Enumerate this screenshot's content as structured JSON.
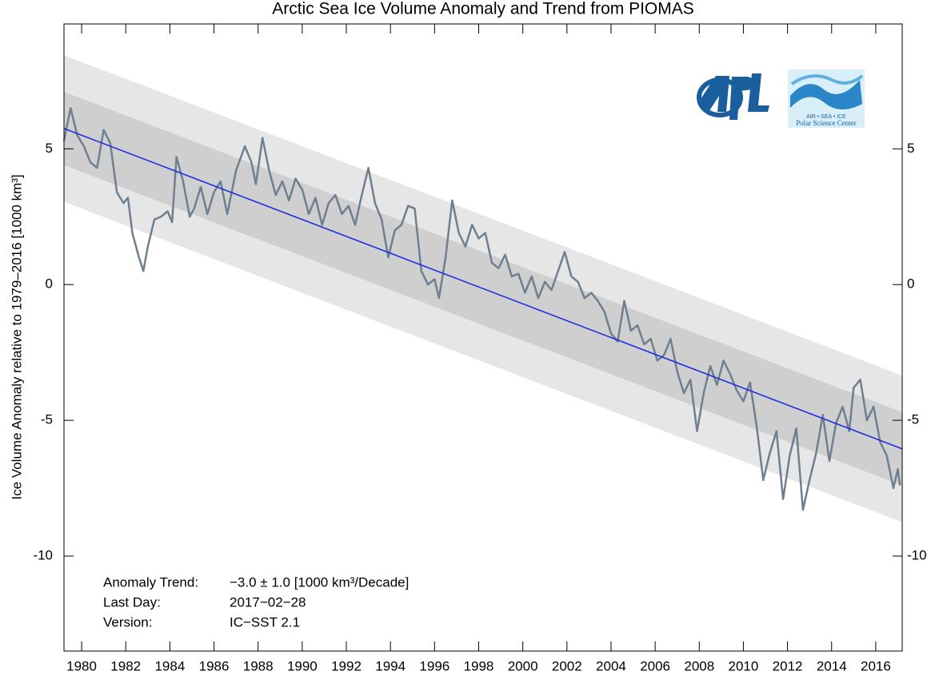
{
  "chart_data": {
    "type": "line",
    "title": "Arctic Sea Ice Volume Anomaly and Trend from PIOMAS",
    "y_label": "Ice Volume Anomaly relative to 1979–2016 [1000 km³]",
    "xlim": [
      1979.2,
      2017.2
    ],
    "ylim": [
      -13.5,
      9.6
    ],
    "xticks": [
      1980,
      1982,
      1984,
      1986,
      1988,
      1990,
      1992,
      1994,
      1996,
      1998,
      2000,
      2002,
      2004,
      2006,
      2008,
      2010,
      2012,
      2014,
      2016
    ],
    "yticks": [
      -10,
      -5,
      0,
      5
    ],
    "bands": [
      {
        "color": "#e6e6e6",
        "x": [
          1979.2,
          2017.2
        ],
        "upper": [
          8.45,
          -3.35
        ],
        "lower": [
          3.05,
          -8.75
        ]
      },
      {
        "color": "#cfcfcf",
        "x": [
          1979.2,
          2017.2
        ],
        "upper": [
          7.1,
          -4.7
        ],
        "lower": [
          4.4,
          -7.4
        ]
      }
    ],
    "series": [
      {
        "name": "Trend",
        "color": "#1f2fe0",
        "x": [
          1979.2,
          2017.2
        ],
        "values": [
          5.75,
          -6.05
        ]
      },
      {
        "name": "Anomaly",
        "color": "#6e8090",
        "x": [
          1979.2,
          1979.5,
          1979.8,
          1980.1,
          1980.4,
          1980.7,
          1981.0,
          1981.3,
          1981.6,
          1981.9,
          1982.1,
          1982.3,
          1982.6,
          1982.8,
          1983.0,
          1983.3,
          1983.6,
          1983.9,
          1984.1,
          1984.3,
          1984.6,
          1984.9,
          1985.1,
          1985.4,
          1985.7,
          1986.0,
          1986.3,
          1986.6,
          1987.0,
          1987.4,
          1987.7,
          1987.9,
          1988.2,
          1988.5,
          1988.8,
          1989.1,
          1989.4,
          1989.7,
          1990.0,
          1990.3,
          1990.6,
          1990.9,
          1991.2,
          1991.5,
          1991.8,
          1992.1,
          1992.4,
          1992.7,
          1993.0,
          1993.3,
          1993.6,
          1993.9,
          1994.2,
          1994.5,
          1994.8,
          1995.1,
          1995.4,
          1995.7,
          1996.0,
          1996.2,
          1996.5,
          1996.8,
          1997.1,
          1997.4,
          1997.7,
          1998.0,
          1998.3,
          1998.6,
          1998.9,
          1999.2,
          1999.5,
          1999.8,
          2000.1,
          2000.4,
          2000.7,
          2001.0,
          2001.3,
          2001.6,
          2001.9,
          2002.2,
          2002.5,
          2002.8,
          2003.1,
          2003.4,
          2003.7,
          2004.0,
          2004.3,
          2004.6,
          2004.9,
          2005.2,
          2005.5,
          2005.8,
          2006.1,
          2006.4,
          2006.7,
          2007.0,
          2007.3,
          2007.6,
          2007.9,
          2008.2,
          2008.5,
          2008.8,
          2009.1,
          2009.4,
          2009.7,
          2010.0,
          2010.3,
          2010.6,
          2010.9,
          2011.2,
          2011.5,
          2011.8,
          2012.1,
          2012.4,
          2012.7,
          2013.0,
          2013.3,
          2013.6,
          2013.9,
          2014.2,
          2014.5,
          2014.8,
          2015.0,
          2015.3,
          2015.6,
          2015.9,
          2016.2,
          2016.5,
          2016.8,
          2017.0,
          2017.1
        ],
        "values": [
          5.3,
          6.5,
          5.5,
          5.1,
          4.5,
          4.3,
          5.7,
          5.2,
          3.4,
          3.0,
          3.2,
          1.9,
          1.0,
          0.5,
          1.4,
          2.4,
          2.5,
          2.7,
          2.3,
          4.7,
          3.8,
          2.5,
          2.8,
          3.6,
          2.6,
          3.4,
          3.8,
          2.6,
          4.2,
          5.1,
          4.5,
          3.7,
          5.4,
          4.2,
          3.3,
          3.8,
          3.1,
          3.9,
          3.5,
          2.6,
          3.2,
          2.2,
          3.0,
          3.3,
          2.6,
          2.9,
          2.2,
          3.3,
          4.3,
          3.0,
          2.4,
          1.0,
          2.0,
          2.2,
          2.9,
          2.8,
          0.5,
          0.0,
          0.2,
          -0.5,
          1.0,
          3.1,
          1.9,
          1.4,
          2.2,
          1.7,
          1.9,
          0.8,
          0.6,
          1.1,
          0.3,
          0.4,
          -0.3,
          0.3,
          -0.5,
          0.1,
          -0.2,
          0.5,
          1.2,
          0.3,
          0.1,
          -0.5,
          -0.3,
          -0.6,
          -1.0,
          -1.8,
          -2.1,
          -0.6,
          -1.7,
          -1.5,
          -2.2,
          -2.0,
          -2.8,
          -2.6,
          -2.0,
          -3.2,
          -4.0,
          -3.5,
          -5.4,
          -4.0,
          -3.0,
          -3.7,
          -2.8,
          -3.3,
          -3.9,
          -4.3,
          -3.6,
          -5.2,
          -7.2,
          -6.2,
          -5.4,
          -7.9,
          -6.3,
          -5.3,
          -8.3,
          -7.2,
          -6.2,
          -4.8,
          -6.5,
          -5.1,
          -4.5,
          -5.4,
          -3.8,
          -3.5,
          -5.0,
          -4.5,
          -5.8,
          -6.3,
          -7.5,
          -6.8,
          -7.4
        ]
      }
    ],
    "annotations": [
      [
        "Anomaly Trend:",
        "−3.0 ± 1.0 [1000 km³/Decade]"
      ],
      [
        "Last Day:",
        "2017−02−28"
      ],
      [
        "Version:",
        "IC−SST 2.1"
      ]
    ],
    "logo_text": [
      "AIR  •  SEA  •  ICE",
      "Polar Science Center"
    ]
  }
}
